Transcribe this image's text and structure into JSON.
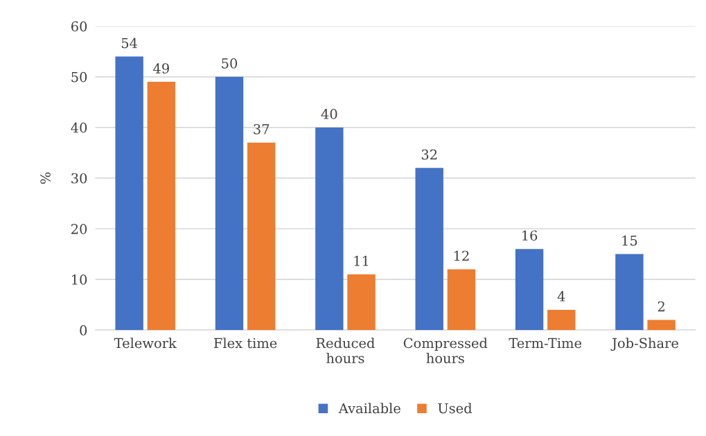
{
  "chart_data": {
    "type": "bar",
    "ylabel": "%",
    "categories": [
      "Telework",
      "Flex time",
      "Reduced\nhours",
      "Compressed\nhours",
      "Term-Time",
      "Job-Share"
    ],
    "series": [
      {
        "name": "Available",
        "color": "#4472c4",
        "values": [
          54,
          50,
          40,
          32,
          16,
          15
        ]
      },
      {
        "name": "Used",
        "color": "#ed7d31",
        "values": [
          49,
          37,
          11,
          12,
          4,
          2
        ]
      }
    ],
    "ylim": [
      0,
      60
    ],
    "yticks": [
      0,
      10,
      20,
      30,
      40,
      50,
      60
    ],
    "grid": "y",
    "legend": "bottom",
    "data_labels": true
  }
}
